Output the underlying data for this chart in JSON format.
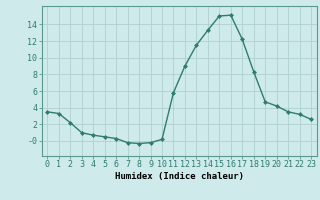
{
  "x": [
    0,
    1,
    2,
    3,
    4,
    5,
    6,
    7,
    8,
    9,
    10,
    11,
    12,
    13,
    14,
    15,
    16,
    17,
    18,
    19,
    20,
    21,
    22,
    23
  ],
  "y": [
    3.5,
    3.3,
    2.2,
    1.0,
    0.7,
    0.5,
    0.3,
    -0.2,
    -0.3,
    -0.2,
    0.2,
    5.8,
    9.0,
    11.5,
    13.3,
    15.0,
    15.1,
    12.2,
    8.3,
    4.7,
    4.2,
    3.5,
    3.2,
    2.6
  ],
  "line_color": "#2e7d6e",
  "marker": "D",
  "markersize": 2.0,
  "linewidth": 1.0,
  "bg_color": "#ceeaea",
  "grid_color": "#b0d0d0",
  "xlabel": "Humidex (Indice chaleur)",
  "xlabel_fontsize": 6.5,
  "tick_fontsize": 6.0,
  "yticks": [
    0,
    2,
    4,
    6,
    8,
    10,
    12,
    14
  ],
  "ytick_labels": [
    "-0",
    "2",
    "4",
    "6",
    "8",
    "10",
    "12",
    "14"
  ],
  "ylim": [
    -1.8,
    16.2
  ],
  "xlim": [
    -0.5,
    23.5
  ],
  "xticks": [
    0,
    1,
    2,
    3,
    4,
    5,
    6,
    7,
    8,
    9,
    10,
    11,
    12,
    13,
    14,
    15,
    16,
    17,
    18,
    19,
    20,
    21,
    22,
    23
  ]
}
